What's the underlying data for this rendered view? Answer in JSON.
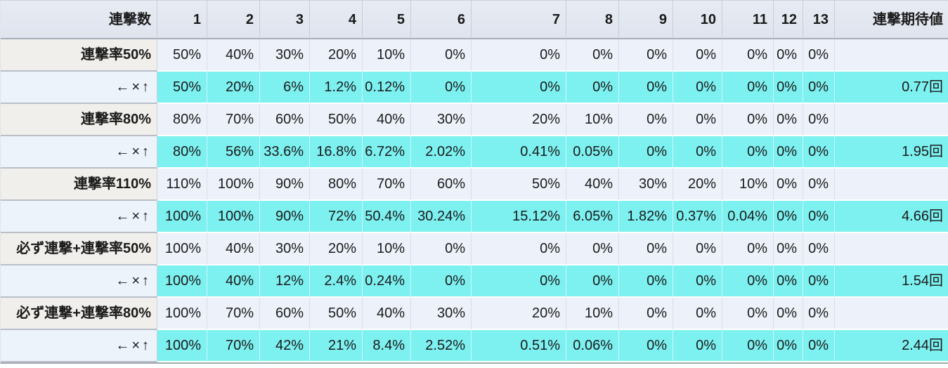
{
  "table": {
    "corner_header": "連撃数",
    "hit_columns": [
      "1",
      "2",
      "3",
      "4",
      "5",
      "6",
      "7",
      "8",
      "9",
      "10",
      "11",
      "12",
      "13"
    ],
    "expected_header": "連撃期待値",
    "rows": [
      {
        "label": "連撃率50%",
        "kind": "rate",
        "values": [
          "50%",
          "40%",
          "30%",
          "20%",
          "10%",
          "0%",
          "0%",
          "0%",
          "0%",
          "0%",
          "0%",
          "0%",
          "0%"
        ],
        "expected": ""
      },
      {
        "label": "←×↑",
        "kind": "product",
        "values": [
          "50%",
          "20%",
          "6%",
          "1.2%",
          "0.12%",
          "0%",
          "0%",
          "0%",
          "0%",
          "0%",
          "0%",
          "0%",
          "0%"
        ],
        "expected": "0.77回"
      },
      {
        "label": "連撃率80%",
        "kind": "rate",
        "values": [
          "80%",
          "70%",
          "60%",
          "50%",
          "40%",
          "30%",
          "20%",
          "10%",
          "0%",
          "0%",
          "0%",
          "0%",
          "0%"
        ],
        "expected": ""
      },
      {
        "label": "←×↑",
        "kind": "product",
        "values": [
          "80%",
          "56%",
          "33.6%",
          "16.8%",
          "6.72%",
          "2.02%",
          "0.41%",
          "0.05%",
          "0%",
          "0%",
          "0%",
          "0%",
          "0%"
        ],
        "expected": "1.95回"
      },
      {
        "label": "連撃率110%",
        "kind": "rate",
        "values": [
          "110%",
          "100%",
          "90%",
          "80%",
          "70%",
          "60%",
          "50%",
          "40%",
          "30%",
          "20%",
          "10%",
          "0%",
          "0%"
        ],
        "expected": ""
      },
      {
        "label": "←×↑",
        "kind": "product",
        "values": [
          "100%",
          "100%",
          "90%",
          "72%",
          "50.4%",
          "30.24%",
          "15.12%",
          "6.05%",
          "1.82%",
          "0.37%",
          "0.04%",
          "0%",
          "0%"
        ],
        "expected": "4.66回"
      },
      {
        "label": "必ず連撃+連撃率50%",
        "kind": "rate",
        "values": [
          "100%",
          "40%",
          "30%",
          "20%",
          "10%",
          "0%",
          "0%",
          "0%",
          "0%",
          "0%",
          "0%",
          "0%",
          "0%"
        ],
        "expected": ""
      },
      {
        "label": "←×↑",
        "kind": "product",
        "values": [
          "100%",
          "40%",
          "12%",
          "2.4%",
          "0.24%",
          "0%",
          "0%",
          "0%",
          "0%",
          "0%",
          "0%",
          "0%",
          "0%"
        ],
        "expected": "1.54回"
      },
      {
        "label": "必ず連撃+連撃率80%",
        "kind": "rate",
        "values": [
          "100%",
          "70%",
          "60%",
          "50%",
          "40%",
          "30%",
          "20%",
          "10%",
          "0%",
          "0%",
          "0%",
          "0%",
          "0%"
        ],
        "expected": ""
      },
      {
        "label": "←×↑",
        "kind": "product",
        "values": [
          "100%",
          "70%",
          "42%",
          "21%",
          "8.4%",
          "2.52%",
          "0.51%",
          "0.06%",
          "0%",
          "0%",
          "0%",
          "0%",
          "0%"
        ],
        "expected": "2.44回"
      }
    ]
  },
  "colors": {
    "highlight_cyan": "#7df0f0",
    "header_bg": "#e2e7f0",
    "rate_label_bg": "#f0efeb",
    "light_cell_bg": "#edf2fa"
  }
}
